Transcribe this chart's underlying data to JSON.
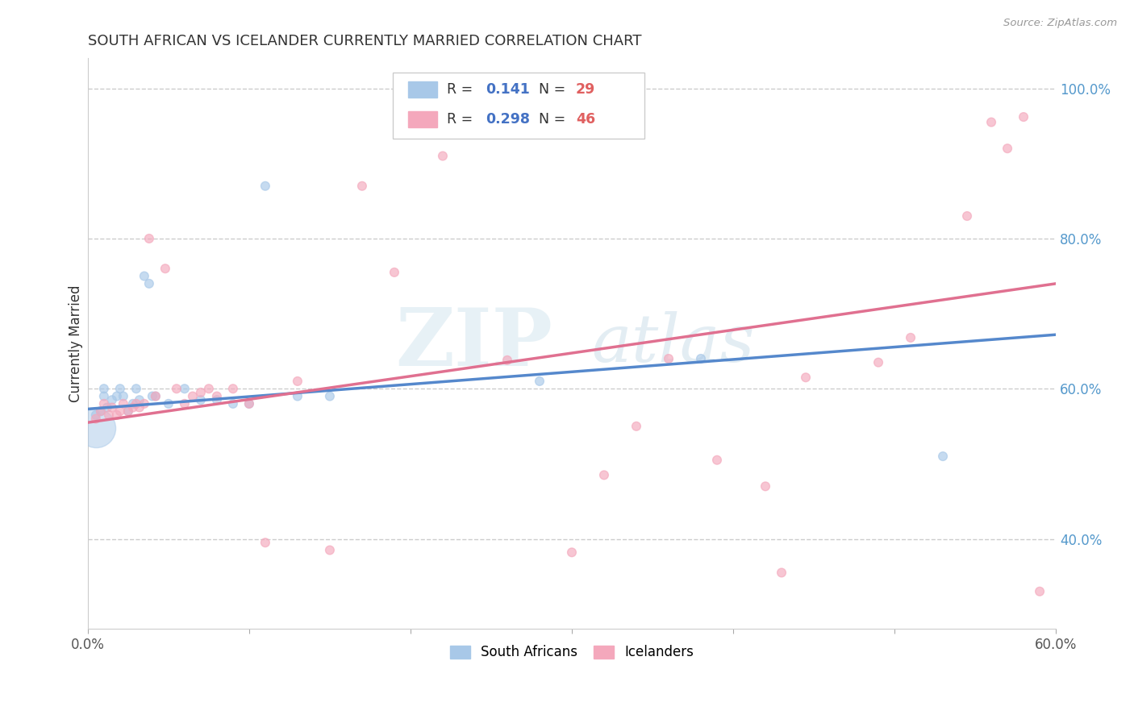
{
  "title": "SOUTH AFRICAN VS ICELANDER CURRENTLY MARRIED CORRELATION CHART",
  "source": "Source: ZipAtlas.com",
  "ylabel": "Currently Married",
  "xlim": [
    0.0,
    0.6
  ],
  "ylim": [
    0.28,
    1.04
  ],
  "xtick_values": [
    0.0,
    0.1,
    0.2,
    0.3,
    0.4,
    0.5,
    0.6
  ],
  "xtick_labels_show": [
    "0.0%",
    "",
    "",
    "",
    "",
    "",
    "60.0%"
  ],
  "ytick_values": [
    0.4,
    0.6,
    0.8,
    1.0
  ],
  "ytick_labels": [
    "40.0%",
    "60.0%",
    "80.0%",
    "100.0%"
  ],
  "legend_R": [
    "0.141",
    "0.298"
  ],
  "legend_N": [
    "29",
    "46"
  ],
  "blue_color": "#a8c8e8",
  "pink_color": "#f4a8bc",
  "blue_line_color": "#5588cc",
  "pink_line_color": "#e07090",
  "watermark_text": "ZIP atlas",
  "blue_scatter_x": [
    0.005,
    0.008,
    0.01,
    0.01,
    0.012,
    0.015,
    0.018,
    0.02,
    0.022,
    0.025,
    0.028,
    0.03,
    0.032,
    0.035,
    0.038,
    0.04,
    0.042,
    0.05,
    0.06,
    0.07,
    0.08,
    0.09,
    0.1,
    0.11,
    0.13,
    0.15,
    0.28,
    0.38,
    0.53
  ],
  "blue_scatter_y": [
    0.565,
    0.57,
    0.59,
    0.6,
    0.575,
    0.585,
    0.59,
    0.6,
    0.59,
    0.57,
    0.58,
    0.6,
    0.585,
    0.75,
    0.74,
    0.59,
    0.59,
    0.58,
    0.6,
    0.585,
    0.585,
    0.58,
    0.58,
    0.87,
    0.59,
    0.59,
    0.61,
    0.64,
    0.51
  ],
  "blue_scatter_size": [
    60,
    60,
    60,
    60,
    60,
    60,
    60,
    60,
    60,
    60,
    60,
    60,
    60,
    60,
    60,
    60,
    60,
    60,
    60,
    60,
    60,
    60,
    60,
    60,
    60,
    60,
    60,
    60,
    60
  ],
  "blue_large_x": [
    0.005
  ],
  "blue_large_y": [
    0.548
  ],
  "blue_large_size": [
    1200
  ],
  "pink_scatter_x": [
    0.005,
    0.008,
    0.01,
    0.013,
    0.015,
    0.018,
    0.02,
    0.022,
    0.025,
    0.028,
    0.03,
    0.032,
    0.035,
    0.038,
    0.042,
    0.048,
    0.055,
    0.06,
    0.065,
    0.07,
    0.075,
    0.08,
    0.09,
    0.1,
    0.11,
    0.13,
    0.15,
    0.17,
    0.19,
    0.22,
    0.26,
    0.3,
    0.32,
    0.34,
    0.36,
    0.39,
    0.42,
    0.43,
    0.445,
    0.49,
    0.51,
    0.545,
    0.56,
    0.57,
    0.58,
    0.59
  ],
  "pink_scatter_y": [
    0.56,
    0.57,
    0.58,
    0.565,
    0.575,
    0.565,
    0.57,
    0.58,
    0.57,
    0.575,
    0.58,
    0.575,
    0.58,
    0.8,
    0.59,
    0.76,
    0.6,
    0.58,
    0.59,
    0.595,
    0.6,
    0.59,
    0.6,
    0.58,
    0.395,
    0.61,
    0.385,
    0.87,
    0.755,
    0.91,
    0.638,
    0.382,
    0.485,
    0.55,
    0.64,
    0.505,
    0.47,
    0.355,
    0.615,
    0.635,
    0.668,
    0.83,
    0.955,
    0.92,
    0.962,
    0.33
  ],
  "pink_scatter_size": [
    60,
    60,
    60,
    60,
    60,
    60,
    60,
    60,
    60,
    60,
    60,
    60,
    60,
    60,
    60,
    60,
    60,
    60,
    60,
    60,
    60,
    60,
    60,
    60,
    60,
    60,
    60,
    60,
    60,
    60,
    60,
    60,
    60,
    60,
    60,
    60,
    60,
    60,
    60,
    60,
    60,
    60,
    60,
    60,
    60,
    60
  ],
  "blue_line_x": [
    0.0,
    0.6
  ],
  "blue_line_y": [
    0.573,
    0.672
  ],
  "pink_line_x": [
    0.0,
    0.6
  ],
  "pink_line_y": [
    0.555,
    0.74
  ],
  "grid_color": "#cccccc",
  "background_color": "#ffffff",
  "legend_box_color": "#ffffff",
  "legend_border_color": "#cccccc",
  "r_color": "#4472c4",
  "n_color": "#e06060",
  "text_color": "#333333",
  "ytick_color": "#5599cc",
  "xtick_color": "#555555"
}
